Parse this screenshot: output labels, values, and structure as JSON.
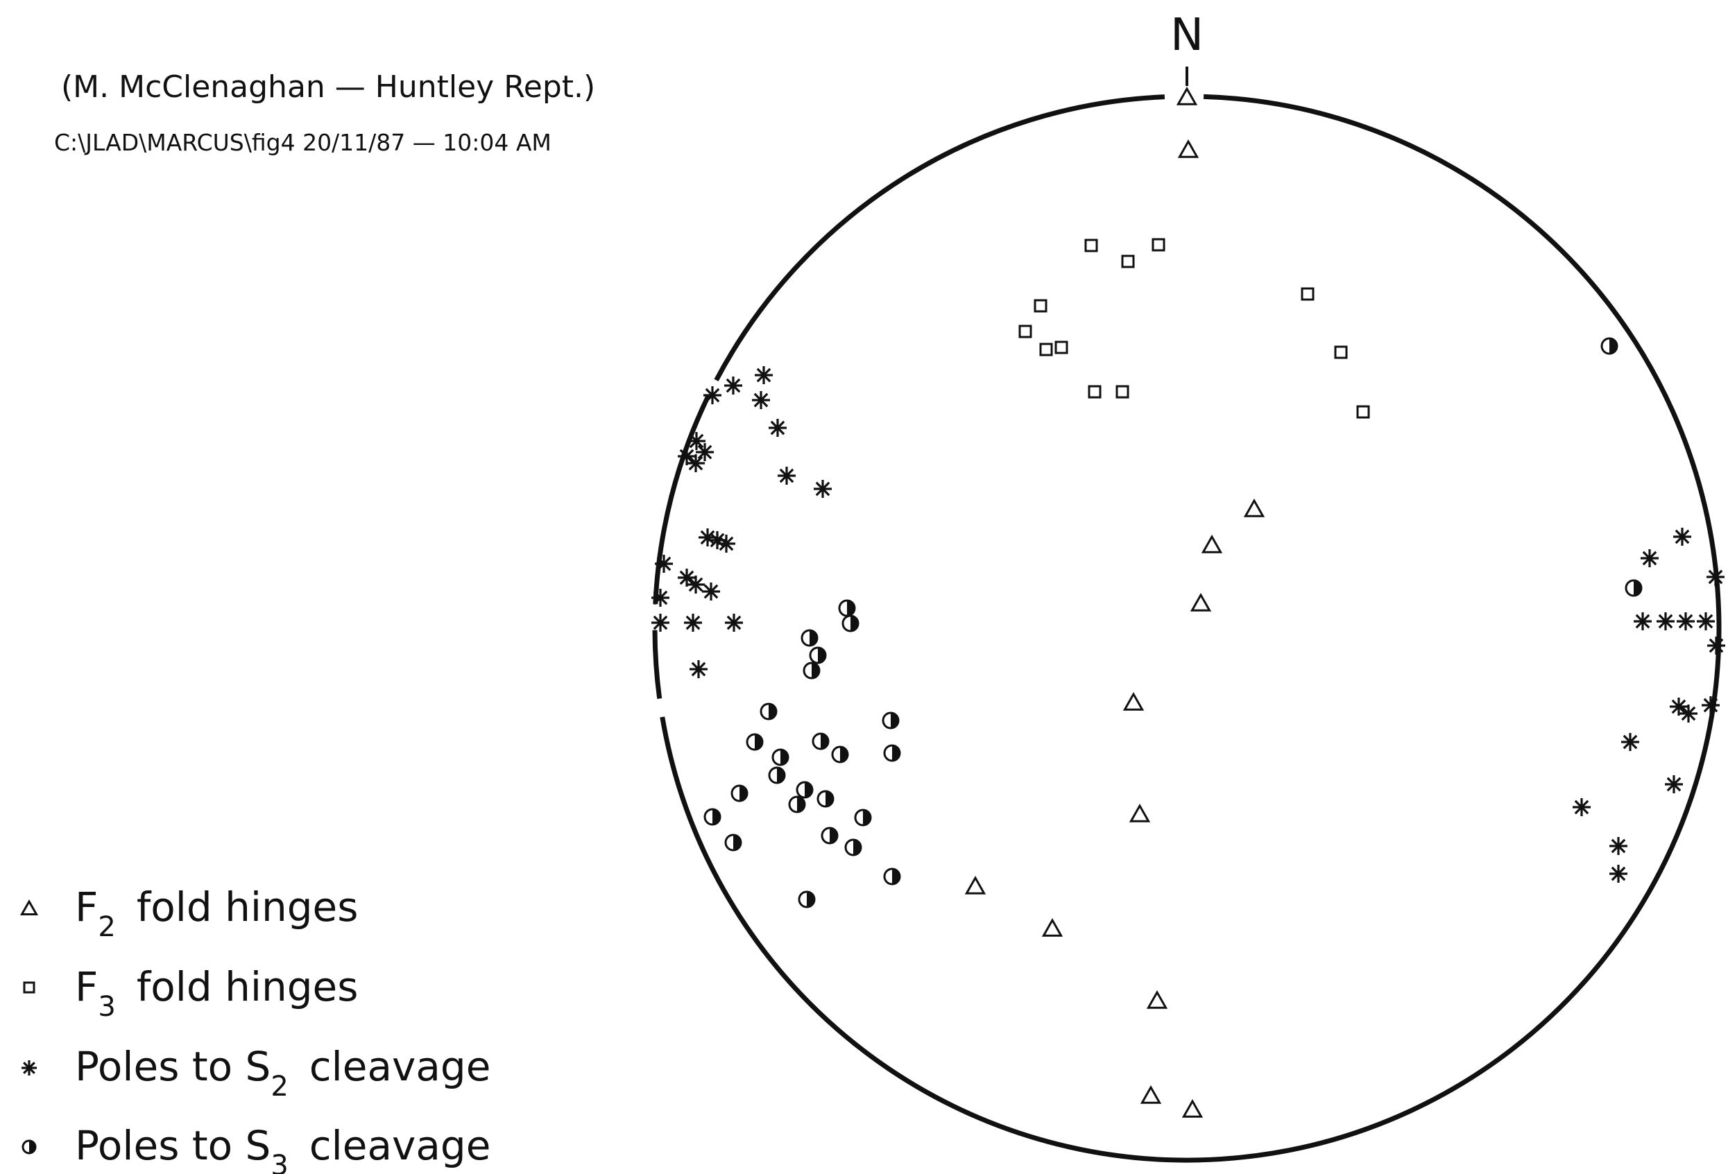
{
  "header": {
    "citation": "(M. McClenaghan — Huntley Rept.)",
    "filepath": "C:\\JLAD\\MARCUS\\fig4   20/11/87 — 10:04 AM"
  },
  "net": {
    "north_label": "N"
  },
  "legend": [
    {
      "symbol": "triangle",
      "label_prefix": "F",
      "subscript": "2",
      "label_suffix": "fold hinges"
    },
    {
      "symbol": "square",
      "label_prefix": "F",
      "subscript": "3",
      "label_suffix": "fold hinges"
    },
    {
      "symbol": "asterisk",
      "label_prefix": "Poles to S",
      "subscript": "2",
      "label_suffix": "cleavage"
    },
    {
      "symbol": "half-circle",
      "label_prefix": "Poles to S",
      "subscript": "3",
      "label_suffix": "cleavage"
    }
  ],
  "colors": {
    "ink": "#111111",
    "paper": "#ffffff"
  }
}
